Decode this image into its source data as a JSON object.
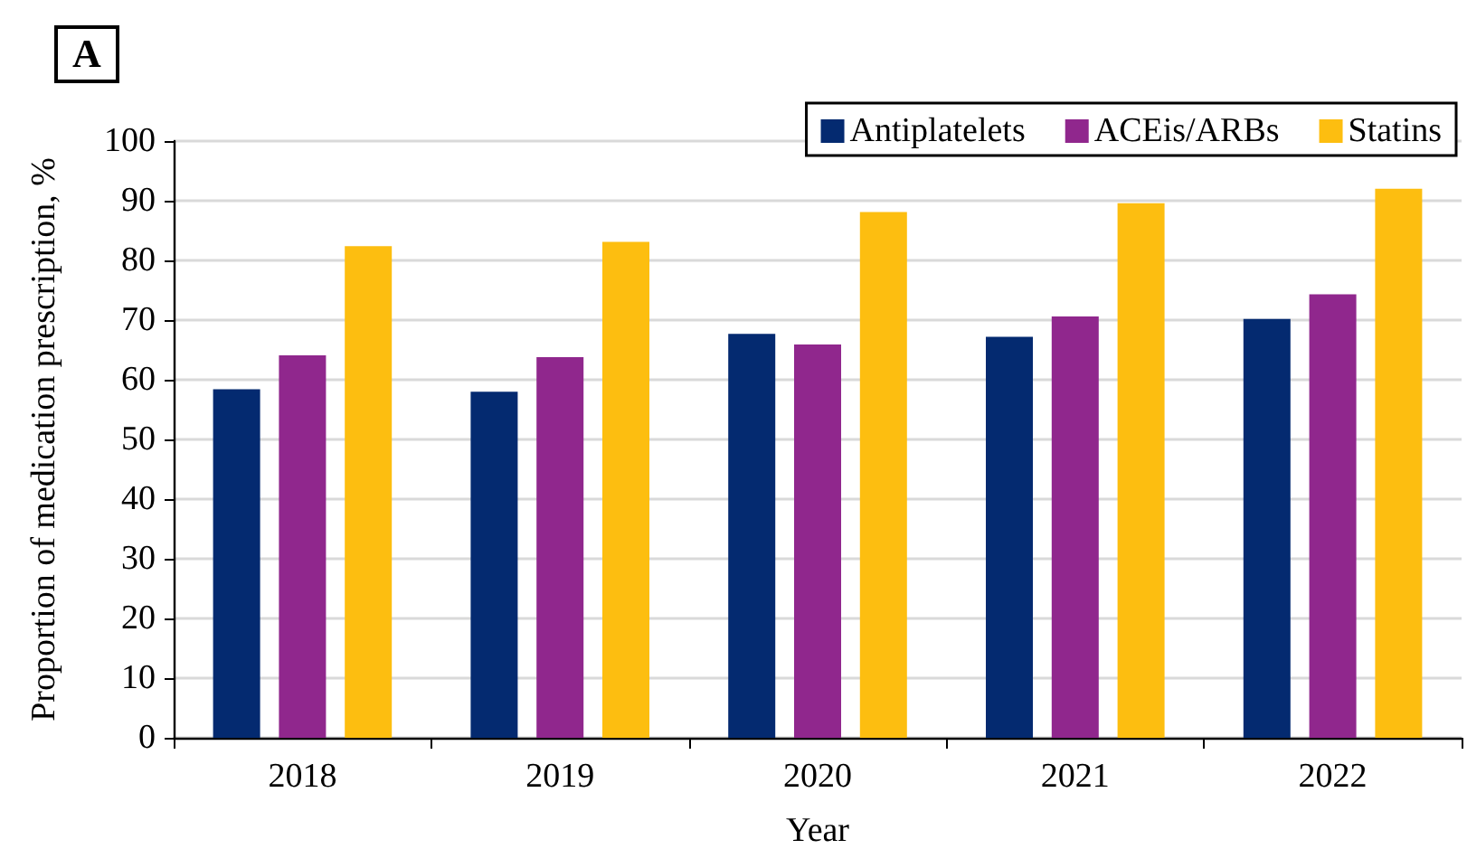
{
  "chart_data": {
    "type": "bar",
    "annotations": [
      "A"
    ],
    "xlabel": "Year",
    "ylabel": "Proportion of medication prescription, %",
    "categories": [
      "2018",
      "2019",
      "2020",
      "2021",
      "2022"
    ],
    "series": [
      {
        "name": "Antiplatelets",
        "color": "#042a70",
        "values": [
          58.4,
          58.0,
          67.7,
          67.2,
          70.2
        ]
      },
      {
        "name": "ACEis/ARBs",
        "color": "#90278d",
        "values": [
          64.1,
          63.8,
          65.9,
          70.6,
          74.3
        ]
      },
      {
        "name": "Statins",
        "color": "#fdbe10",
        "values": [
          82.4,
          83.1,
          88.1,
          89.6,
          92.0
        ]
      }
    ],
    "ylim": [
      0,
      100
    ],
    "yticks": [
      0,
      10,
      20,
      30,
      40,
      50,
      60,
      70,
      80,
      90,
      100
    ],
    "grid": "y",
    "legend": "top right"
  }
}
